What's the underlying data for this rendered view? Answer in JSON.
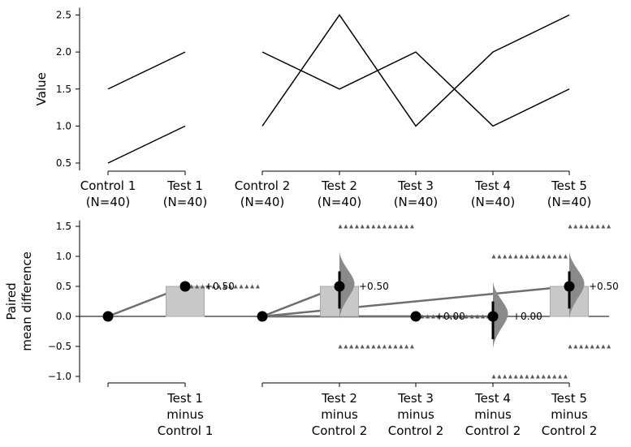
{
  "chart_data": [
    {
      "type": "line",
      "panel": "top",
      "ylabel": "Value",
      "ylim": [
        0.4,
        2.6
      ],
      "yticks": [
        "0.5",
        "1.0",
        "1.5",
        "2.0",
        "2.5"
      ],
      "categories": [
        [
          "Control 1",
          "(N=40)"
        ],
        [
          "Test 1",
          "(N=40)"
        ],
        [
          "Control 2",
          "(N=40)"
        ],
        [
          "Test 2",
          "(N=40)"
        ],
        [
          "Test 3",
          "(N=40)"
        ],
        [
          "Test 4",
          "(N=40)"
        ],
        [
          "Test 5",
          "(N=40)"
        ]
      ],
      "groups": [
        {
          "categories": [
            0,
            1
          ],
          "series": [
            {
              "values": [
                1.5,
                2.0
              ]
            },
            {
              "values": [
                0.5,
                1.0
              ]
            }
          ]
        },
        {
          "categories": [
            2,
            3,
            4,
            5,
            6
          ],
          "series": [
            {
              "values": [
                2.0,
                1.5,
                2.0,
                1.0,
                1.5
              ]
            },
            {
              "values": [
                1.0,
                2.5,
                1.0,
                2.0,
                2.5
              ]
            }
          ]
        }
      ]
    },
    {
      "type": "scatter",
      "panel": "bottom",
      "ylabel": [
        "Paired",
        "mean difference"
      ],
      "ylim": [
        -1.1,
        1.6
      ],
      "yticks": [
        "−1.0",
        "−0.5",
        "0.0",
        "0.5",
        "1.0",
        "1.5"
      ],
      "categories": [
        [],
        [
          "Test 1",
          "minus",
          "Control 1"
        ],
        [],
        [
          "Test 2",
          "minus",
          "Control 2"
        ],
        [
          "Test 3",
          "minus",
          "Control 2"
        ],
        [
          "Test 4",
          "minus",
          "Control 2"
        ],
        [
          "Test 5",
          "minus",
          "Control 2"
        ]
      ],
      "reference_points": [
        0,
        2
      ],
      "effects": [
        {
          "category": 1,
          "reference": 0,
          "mean": 0.5,
          "ci": [
            0.5,
            0.5
          ],
          "label": "+0.50",
          "bar": 0.5,
          "has_dist": false,
          "bootstrap_levels": [
            0.5
          ]
        },
        {
          "category": 3,
          "reference": 2,
          "mean": 0.5,
          "ci": [
            0.13,
            0.75
          ],
          "label": "+0.50",
          "bar": 0.5,
          "has_dist": true,
          "bootstrap_levels": [
            1.5,
            -0.5
          ]
        },
        {
          "category": 4,
          "reference": 2,
          "mean": 0.0,
          "ci": [
            0.0,
            0.0
          ],
          "label": "+0.00",
          "bar": 0.0,
          "has_dist": false,
          "bootstrap_levels": [
            0.0
          ]
        },
        {
          "category": 5,
          "reference": 2,
          "mean": 0.0,
          "ci": [
            -0.38,
            0.25
          ],
          "label": "+0.00",
          "bar": 0.0,
          "has_dist": true,
          "bootstrap_levels": [
            1.0,
            -1.0
          ]
        },
        {
          "category": 6,
          "reference": 2,
          "mean": 0.5,
          "ci": [
            0.13,
            0.75
          ],
          "label": "+0.50",
          "bar": 0.5,
          "has_dist": true,
          "bootstrap_levels": [
            1.5,
            -0.5
          ]
        }
      ],
      "zero_line": true
    }
  ]
}
